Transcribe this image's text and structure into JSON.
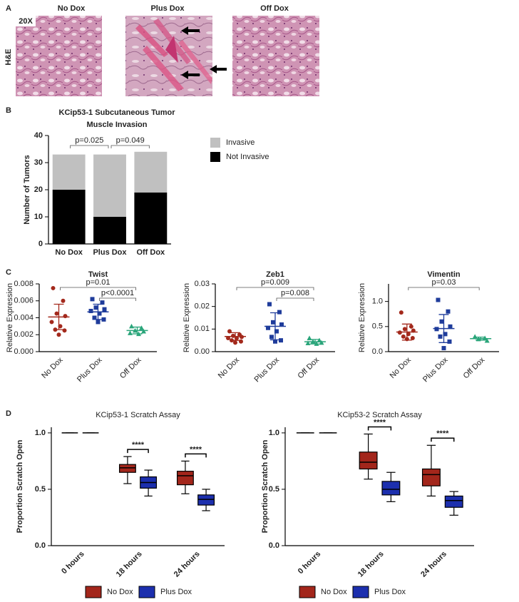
{
  "figure_a": {
    "label": "A",
    "magnification": "20X",
    "stain": "H&E",
    "conditions": [
      {
        "name": "No Dox",
        "color": "#8b1c1c"
      },
      {
        "name": "Plus Dox",
        "color": "#1c2a80"
      },
      {
        "name": "Off Dox",
        "color": "#2e9e4f"
      }
    ]
  },
  "chart_data": [
    {
      "type": "stacked_bar",
      "panel": "B",
      "title": [
        "KCip53-1 Subcutaneous Tumor",
        "Muscle Invasion"
      ],
      "categories": [
        "No Dox",
        "Plus Dox",
        "Off Dox"
      ],
      "series": [
        {
          "name": "Not Invasive",
          "color": "#000000",
          "values": [
            20,
            10,
            19
          ]
        },
        {
          "name": "Invasive",
          "color": "#c0c0c0",
          "values": [
            13,
            23,
            15
          ]
        }
      ],
      "ylabel": "Number of Tumors",
      "ylim": [
        0,
        40
      ],
      "yticks": [
        0,
        10,
        20,
        30,
        40
      ],
      "legend": "right",
      "annotations": [
        {
          "text": "p=0.025",
          "groups": [
            0,
            1
          ]
        },
        {
          "text": "p=0.049",
          "groups": [
            1,
            2
          ]
        }
      ]
    },
    {
      "type": "dotplot",
      "panel": "C",
      "title": "Twist",
      "ylabel": "Relative Expression",
      "categories": [
        "No Dox",
        "Plus Dox",
        "Off Dox"
      ],
      "colors": [
        "#a3291c",
        "#1f3c9b",
        "#2aa57a"
      ],
      "markers": [
        "circle",
        "square",
        "triangle"
      ],
      "points": [
        [
          0.0075,
          0.006,
          0.0045,
          0.0042,
          0.0035,
          0.003,
          0.0026,
          0.0025,
          0.002
        ],
        [
          0.0062,
          0.0058,
          0.0052,
          0.005,
          0.0048,
          0.0045,
          0.004,
          0.0038,
          0.0035
        ],
        [
          0.003,
          0.0028,
          0.0025,
          0.0024,
          0.0022,
          0.0021
        ]
      ],
      "means": [
        0.0041,
        0.0047,
        0.0025
      ],
      "sds": [
        0.0015,
        0.0009,
        0.0004
      ],
      "ylim": [
        0,
        0.008
      ],
      "yticks": [
        {
          "value": 0,
          "label": "0.000"
        },
        {
          "value": 0.002,
          "label": "0.002"
        },
        {
          "value": 0.004,
          "label": "0.004"
        },
        {
          "value": 0.006,
          "label": "0.006"
        },
        {
          "value": 0.008,
          "label": "0.008"
        }
      ],
      "annotations": [
        {
          "text": "p=0.01",
          "groups": [
            0,
            2
          ]
        },
        {
          "text": "p<0.0001",
          "groups": [
            1,
            2
          ]
        }
      ]
    },
    {
      "type": "dotplot",
      "title": "Zeb1",
      "ylabel": "Relative Expression",
      "categories": [
        "No Dox",
        "Plus Dox",
        "Off Dox"
      ],
      "colors": [
        "#a3291c",
        "#1f3c9b",
        "#2aa57a"
      ],
      "markers": [
        "circle",
        "square",
        "triangle"
      ],
      "points": [
        [
          0.009,
          0.0075,
          0.007,
          0.0065,
          0.006,
          0.006,
          0.005,
          0.0045,
          0.004
        ],
        [
          0.021,
          0.0175,
          0.013,
          0.012,
          0.0105,
          0.009,
          0.0065,
          0.005,
          0.0045
        ],
        [
          0.006,
          0.005,
          0.0045,
          0.004,
          0.0038,
          0.0035
        ]
      ],
      "means": [
        0.0067,
        0.0112,
        0.0044
      ],
      "sds": [
        0.0017,
        0.006,
        0.001
      ],
      "ylim": [
        0,
        0.03
      ],
      "yticks": [
        {
          "value": 0,
          "label": "0.00"
        },
        {
          "value": 0.01,
          "label": "0.01"
        },
        {
          "value": 0.02,
          "label": "0.02"
        },
        {
          "value": 0.03,
          "label": "0.03"
        }
      ],
      "annotations": [
        {
          "text": "p=0.009",
          "groups": [
            0,
            2
          ]
        },
        {
          "text": "p=0.008",
          "groups": [
            1,
            2
          ]
        }
      ]
    },
    {
      "type": "dotplot",
      "title": "Vimentin",
      "ylabel": "Relative Expression",
      "categories": [
        "No Dox",
        "Plus Dox",
        "Off Dox"
      ],
      "colors": [
        "#a3291c",
        "#1f3c9b",
        "#2aa57a"
      ],
      "markers": [
        "circle",
        "square",
        "triangle"
      ],
      "points": [
        [
          0.78,
          0.5,
          0.45,
          0.42,
          0.38,
          0.35,
          0.3,
          0.27,
          0.25
        ],
        [
          1.03,
          0.8,
          0.6,
          0.5,
          0.45,
          0.35,
          0.3,
          0.2,
          0.07
        ],
        [
          0.3,
          0.27,
          0.25,
          0.22
        ]
      ],
      "means": [
        0.39,
        0.46,
        0.26
      ],
      "sds": [
        0.16,
        0.28,
        0.03
      ],
      "ylim": [
        0,
        1.35
      ],
      "yticks": [
        {
          "value": 0,
          "label": "0.0"
        },
        {
          "value": 0.5,
          "label": "0.5"
        },
        {
          "value": 1,
          "label": "1.0"
        }
      ],
      "annotations": [
        {
          "text": "p=0.03",
          "groups": [
            0,
            2
          ]
        }
      ]
    },
    {
      "type": "box",
      "panel": "D",
      "title": "KCip53-1 Scratch Assay",
      "ylabel": "Proportion Scratch Open",
      "categories": [
        "0 hours",
        "18 hours",
        "24 hours"
      ],
      "series": [
        {
          "name": "No Dox",
          "color": "#a3261b",
          "boxes": [
            {
              "min": 1,
              "q1": 1,
              "median": 1,
              "q3": 1,
              "max": 1
            },
            {
              "min": 0.55,
              "q1": 0.65,
              "median": 0.69,
              "q3": 0.72,
              "max": 0.79
            },
            {
              "min": 0.46,
              "q1": 0.54,
              "median": 0.62,
              "q3": 0.66,
              "max": 0.75
            }
          ]
        },
        {
          "name": "Plus Dox",
          "color": "#1c2fae",
          "boxes": [
            {
              "min": 1,
              "q1": 1,
              "median": 1,
              "q3": 1,
              "max": 1
            },
            {
              "min": 0.44,
              "q1": 0.51,
              "median": 0.56,
              "q3": 0.61,
              "max": 0.67
            },
            {
              "min": 0.31,
              "q1": 0.36,
              "median": 0.41,
              "q3": 0.45,
              "max": 0.5
            }
          ]
        }
      ],
      "ylim": [
        0,
        1.05
      ],
      "yticks": [
        {
          "value": 0,
          "label": "0.0"
        },
        {
          "value": 0.5,
          "label": "0.5"
        },
        {
          "value": 1,
          "label": "1.0"
        }
      ],
      "legend": "bottom",
      "annotations": [
        {
          "text": "****",
          "category": 1
        },
        {
          "text": "****",
          "category": 2
        }
      ]
    },
    {
      "type": "box",
      "title": "KCip53-2 Scratch Assay",
      "ylabel": "Proportion Scratch Open",
      "categories": [
        "0 hours",
        "18 hours",
        "24 hours"
      ],
      "series": [
        {
          "name": "No Dox",
          "color": "#a3261b",
          "boxes": [
            {
              "min": 1,
              "q1": 1,
              "median": 1,
              "q3": 1,
              "max": 1
            },
            {
              "min": 0.59,
              "q1": 0.68,
              "median": 0.74,
              "q3": 0.83,
              "max": 0.99
            },
            {
              "min": 0.44,
              "q1": 0.53,
              "median": 0.63,
              "q3": 0.68,
              "max": 0.89
            }
          ]
        },
        {
          "name": "Plus Dox",
          "color": "#1c2fae",
          "boxes": [
            {
              "min": 1,
              "q1": 1,
              "median": 1,
              "q3": 1,
              "max": 1
            },
            {
              "min": 0.39,
              "q1": 0.45,
              "median": 0.5,
              "q3": 0.57,
              "max": 0.65
            },
            {
              "min": 0.27,
              "q1": 0.34,
              "median": 0.4,
              "q3": 0.44,
              "max": 0.48
            }
          ]
        }
      ],
      "ylim": [
        0,
        1.05
      ],
      "yticks": [
        {
          "value": 0,
          "label": "0.0"
        },
        {
          "value": 0.5,
          "label": "0.5"
        },
        {
          "value": 1,
          "label": "1.0"
        }
      ],
      "legend": "bottom",
      "annotations": [
        {
          "text": "****",
          "category": 1
        },
        {
          "text": "****",
          "category": 2
        }
      ]
    }
  ]
}
